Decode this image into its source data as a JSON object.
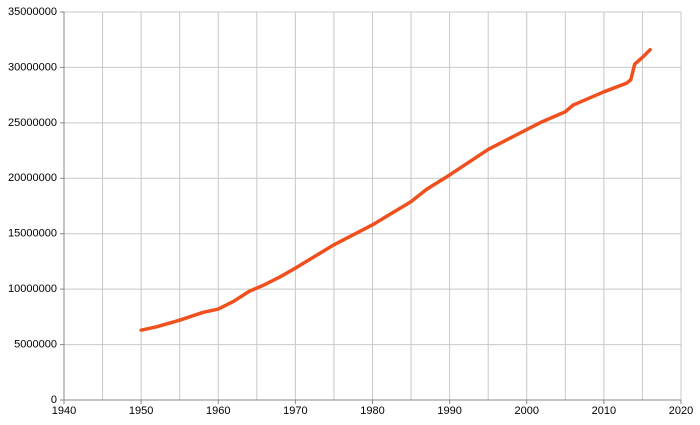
{
  "chart_data": {
    "type": "line",
    "x": [
      1950,
      1952,
      1955,
      1958,
      1960,
      1962,
      1964,
      1966,
      1968,
      1970,
      1975,
      1980,
      1985,
      1987,
      1990,
      1995,
      2000,
      2002,
      2005,
      2006,
      2010,
      2013,
      2013.5,
      2014,
      2015,
      2016
    ],
    "series": [
      {
        "color": "#f0501e",
        "values": [
          6300000.0,
          6600000.0,
          7200000.0,
          7900000.0,
          8200000.0,
          8900000.0,
          9800000.0,
          10400000.0,
          11100000.0,
          11900000.0,
          14000000.0,
          15800000.0,
          17900000.0,
          19000000.0,
          20300000.0,
          22600000.0,
          24400000.0,
          25100000.0,
          26000000.0,
          26600000.0,
          27800000.0,
          28600000.0,
          28900000.0,
          30300000.0,
          30900000.0,
          31600000.0
        ]
      }
    ],
    "xlim": [
      1940,
      2020
    ],
    "xticks": [
      1940,
      1950,
      1960,
      1970,
      1980,
      1990,
      2000,
      2010,
      2020
    ],
    "xminorticks": [
      1945,
      1955,
      1965,
      1975,
      1985,
      1995,
      2005,
      2015
    ],
    "ylim": [
      0,
      35000000
    ],
    "yticks": [
      0,
      5000000,
      10000000,
      15000000,
      20000000,
      25000000,
      30000000,
      35000000
    ],
    "grid": true
  }
}
